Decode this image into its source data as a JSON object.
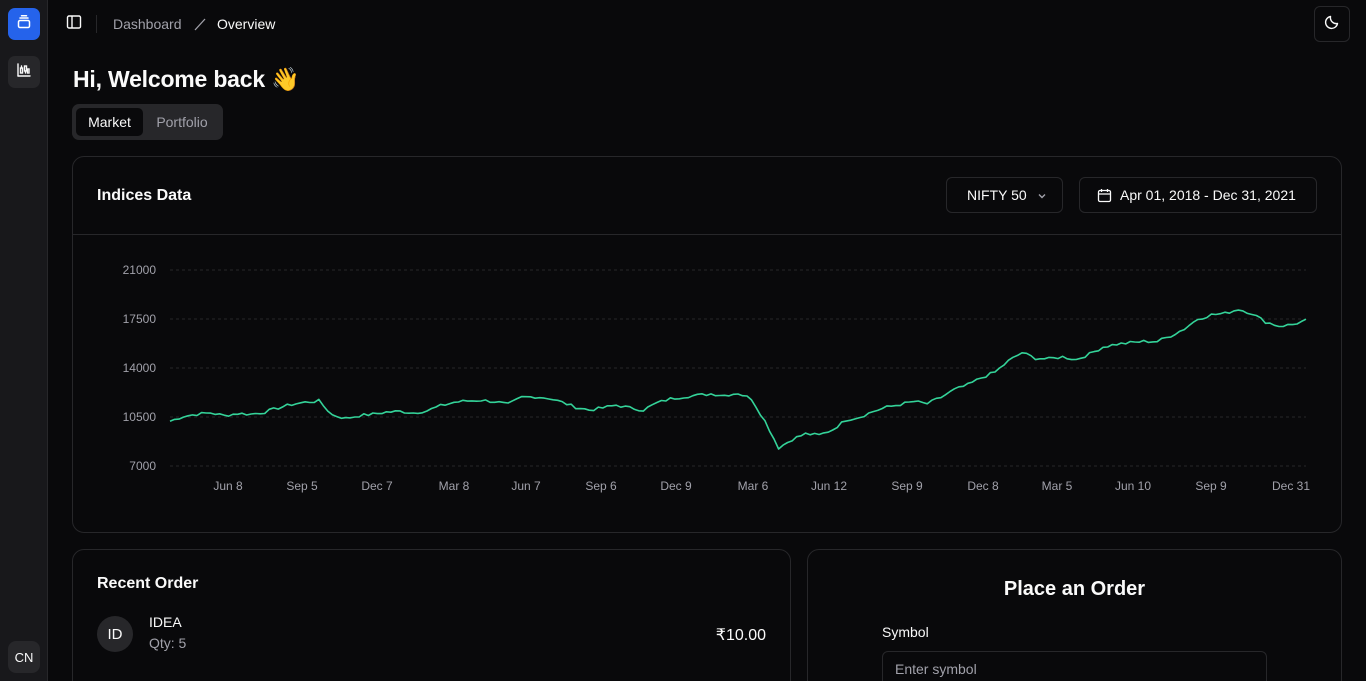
{
  "rail": {
    "avatar_initials": "CN"
  },
  "breadcrumb": {
    "items": [
      "Dashboard",
      "Overview"
    ]
  },
  "greeting": "Hi, Welcome back 👋",
  "tabs": [
    {
      "label": "Market"
    },
    {
      "label": "Portfolio"
    }
  ],
  "indices": {
    "title": "Indices Data",
    "index_select": "NIFTY 50",
    "date_range": "Apr 01, 2018 - Dec 31, 2021"
  },
  "chart_data": {
    "type": "line",
    "x_tick_labels": [
      "Jun 8",
      "Sep 5",
      "Dec 7",
      "Mar 8",
      "Jun 7",
      "Sep 6",
      "Dec 9",
      "Mar 6",
      "Jun 12",
      "Sep 9",
      "Dec 8",
      "Mar 5",
      "Jun 10",
      "Sep 9",
      "Dec 31"
    ],
    "y_ticks": [
      "21000",
      "17500",
      "14000",
      "10500",
      "7000"
    ],
    "ylim": [
      7000,
      21000
    ],
    "grid": "horizontal dashed",
    "color": "#34d399",
    "series": [
      {
        "values": [
          10200,
          10550,
          10700,
          10800,
          10600,
          10750,
          10700,
          10850,
          11150,
          11400,
          11550,
          11650,
          10650,
          10400,
          10600,
          10700,
          10850,
          10900,
          10800,
          10950,
          11300,
          11550,
          11650,
          11700,
          11600,
          11400,
          11900,
          11950,
          11850,
          11550,
          11200,
          11000,
          11150,
          11350,
          11150,
          11000,
          11500,
          11800,
          11950,
          12050,
          12150,
          12050,
          12200,
          11800,
          10200,
          8300,
          8900,
          9300,
          9200,
          9600,
          10300,
          10500,
          10900,
          11200,
          11400,
          11600,
          11450,
          11900,
          12450,
          12800,
          13300,
          13700,
          14500,
          15100,
          14700,
          14650,
          14800,
          14600,
          15000,
          15500,
          15700,
          15800,
          15900,
          15900,
          16300,
          16800,
          17500,
          17800,
          17900,
          18200,
          17900,
          17300,
          17000,
          17100,
          17400
        ]
      }
    ]
  },
  "recent_order": {
    "title": "Recent Order",
    "items": [
      {
        "initials": "ID",
        "symbol": "IDEA",
        "qty": "Qty: 5",
        "amount": "₹10.00"
      }
    ]
  },
  "place_order": {
    "title": "Place an Order",
    "symbol_label": "Symbol",
    "symbol_placeholder": "Enter symbol"
  }
}
